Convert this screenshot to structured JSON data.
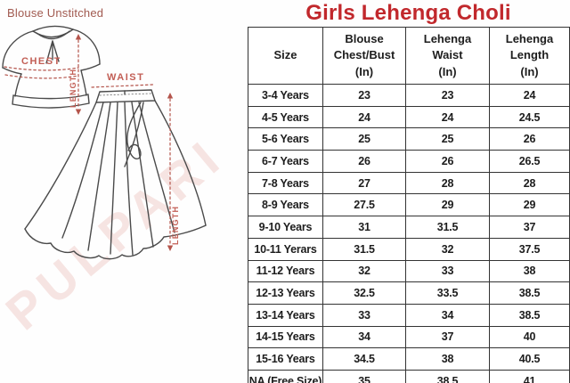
{
  "page": {
    "title": "Girls Lehenga Choli",
    "drawing_caption": "Blouse Unstitched",
    "watermark": "PULPARI"
  },
  "drawing": {
    "blouse_chest_label": "CHEST",
    "blouse_length_label": "LENGTH",
    "skirt_waist_label": "WAIST",
    "skirt_length_label": "LENGTH"
  },
  "colors": {
    "title_red": "#c1282c",
    "annotation_red": "#b4544b",
    "caption_red": "#a15a50",
    "table_border": "#333333",
    "watermark_pink": "#e5aaa5"
  },
  "chart_data": {
    "type": "table",
    "title": "Girls Lehenga Choli",
    "columns": [
      "Size",
      "Blouse Chest/Bust (In)",
      "Lehenga Waist (In)",
      "Lehenga Length (In)"
    ],
    "columns_lines": [
      [
        "Size"
      ],
      [
        "Blouse",
        "Chest/Bust",
        "(In)"
      ],
      [
        "Lehenga",
        "Waist",
        "(In)"
      ],
      [
        "Lehenga",
        "Length",
        "(In)"
      ]
    ],
    "rows": [
      [
        "3-4 Years",
        "23",
        "23",
        "24"
      ],
      [
        "4-5 Years",
        "24",
        "24",
        "24.5"
      ],
      [
        "5-6 Years",
        "25",
        "25",
        "26"
      ],
      [
        "6-7 Years",
        "26",
        "26",
        "26.5"
      ],
      [
        "7-8 Years",
        "27",
        "28",
        "28"
      ],
      [
        "8-9 Years",
        "27.5",
        "29",
        "29"
      ],
      [
        "9-10 Years",
        "31",
        "31.5",
        "37"
      ],
      [
        "10-11 Yerars",
        "31.5",
        "32",
        "37.5"
      ],
      [
        "11-12 Years",
        "32",
        "33",
        "38"
      ],
      [
        "12-13 Years",
        "32.5",
        "33.5",
        "38.5"
      ],
      [
        "13-14 Years",
        "33",
        "34",
        "38.5"
      ],
      [
        "14-15 Years",
        "34",
        "37",
        "40"
      ],
      [
        "15-16 Years",
        "34.5",
        "38",
        "40.5"
      ],
      [
        "NA (Free Size)",
        "35",
        "38.5",
        "41"
      ]
    ]
  }
}
